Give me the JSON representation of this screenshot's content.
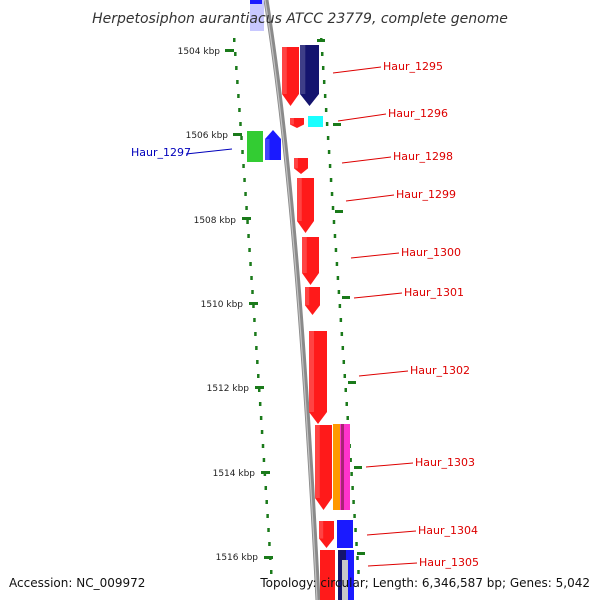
{
  "header": {
    "title": "Herpetosiphon aurantiacus ATCC 23779, complete genome"
  },
  "footer": {
    "accession": "Accession: NC_009972",
    "summary": "Topology: circular; Length: 6,346,587 bp; Genes: 5,042"
  },
  "ruler": {
    "unit": "kbp",
    "ticks": [
      "1504 kbp",
      "1506 kbp",
      "1508 kbp",
      "1510 kbp",
      "1512 kbp",
      "1514 kbp",
      "1516 kbp"
    ]
  },
  "genes": [
    {
      "label": "Haur_1295",
      "color": "#dd0000"
    },
    {
      "label": "Haur_1296",
      "color": "#dd0000"
    },
    {
      "label": "Haur_1297",
      "color": "#0000bb"
    },
    {
      "label": "Haur_1298",
      "color": "#dd0000"
    },
    {
      "label": "Haur_1299",
      "color": "#dd0000"
    },
    {
      "label": "Haur_1300",
      "color": "#dd0000"
    },
    {
      "label": "Haur_1301",
      "color": "#dd0000"
    },
    {
      "label": "Haur_1302",
      "color": "#dd0000"
    },
    {
      "label": "Haur_1303",
      "color": "#dd0000"
    },
    {
      "label": "Haur_1304",
      "color": "#dd0000"
    },
    {
      "label": "Haur_1305",
      "color": "#dd0000"
    }
  ],
  "colors": {
    "backbone": "#8a8a8a",
    "tick_marks": "#1a7a1a",
    "feature_red": "#ff1a1a",
    "feature_navy": "#14146e",
    "feature_blue": "#1a1aff",
    "feature_cyan": "#1affff",
    "feature_green": "#33cc33",
    "feature_orange": "#ff9900",
    "feature_magenta": "#ff33cc",
    "feature_light_blue": "#c8c8ff"
  }
}
